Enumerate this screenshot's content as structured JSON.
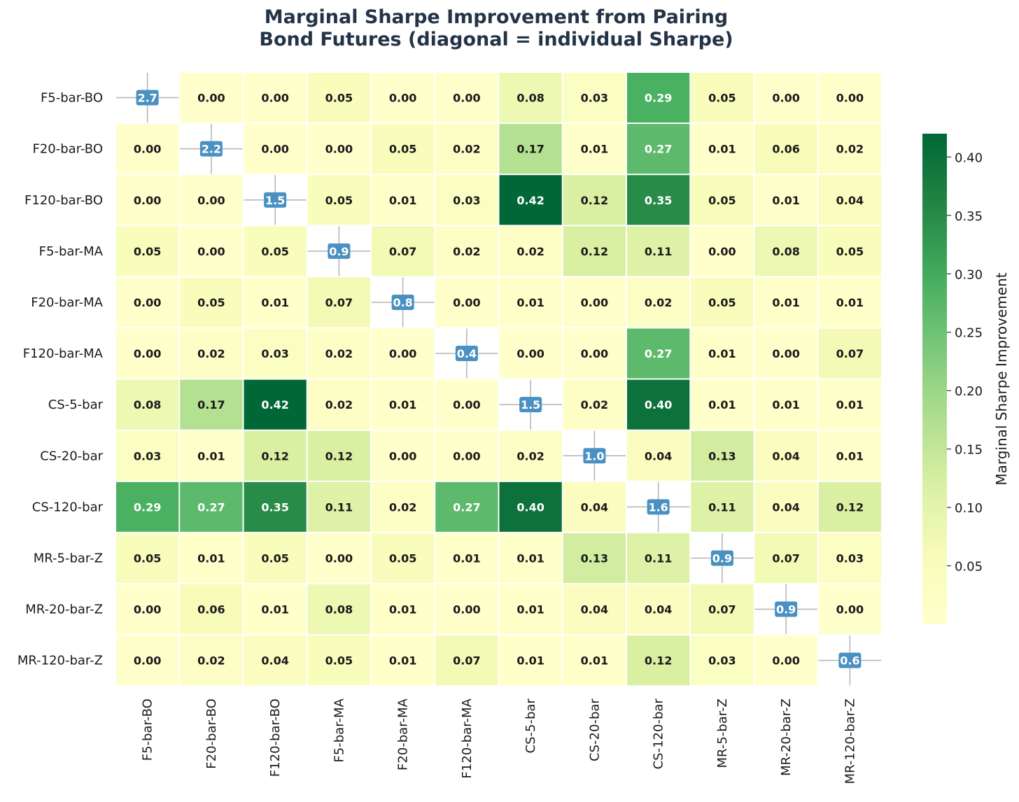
{
  "chart_data": {
    "type": "heatmap",
    "title": [
      "Marginal Sharpe Improvement from Pairing",
      "Bond Futures (diagonal = individual Sharpe)"
    ],
    "row_labels": [
      "F5-bar-BO",
      "F20-bar-BO",
      "F120-bar-BO",
      "F5-bar-MA",
      "F20-bar-MA",
      "F120-bar-MA",
      "CS-5-bar",
      "CS-20-bar",
      "CS-120-bar",
      "MR-5-bar-Z",
      "MR-20-bar-Z",
      "MR-120-bar-Z"
    ],
    "col_labels": [
      "F5-bar-BO",
      "F20-bar-BO",
      "F120-bar-BO",
      "F5-bar-MA",
      "F20-bar-MA",
      "F120-bar-MA",
      "CS-5-bar",
      "CS-20-bar",
      "CS-120-bar",
      "MR-5-bar-Z",
      "MR-20-bar-Z",
      "MR-120-bar-Z"
    ],
    "values": [
      [
        "2.7",
        "0.00",
        "0.00",
        "0.05",
        "0.00",
        "0.00",
        "0.08",
        "0.03",
        "0.29",
        "0.05",
        "0.00",
        "0.00"
      ],
      [
        "0.00",
        "2.2",
        "0.00",
        "0.00",
        "0.05",
        "0.02",
        "0.17",
        "0.01",
        "0.27",
        "0.01",
        "0.06",
        "0.02"
      ],
      [
        "0.00",
        "0.00",
        "1.5",
        "0.05",
        "0.01",
        "0.03",
        "0.42",
        "0.12",
        "0.35",
        "0.05",
        "0.01",
        "0.04"
      ],
      [
        "0.05",
        "0.00",
        "0.05",
        "0.9",
        "0.07",
        "0.02",
        "0.02",
        "0.12",
        "0.11",
        "0.00",
        "0.08",
        "0.05"
      ],
      [
        "0.00",
        "0.05",
        "0.01",
        "0.07",
        "0.8",
        "0.00",
        "0.01",
        "0.00",
        "0.02",
        "0.05",
        "0.01",
        "0.01"
      ],
      [
        "0.00",
        "0.02",
        "0.03",
        "0.02",
        "0.00",
        "0.4",
        "0.00",
        "0.00",
        "0.27",
        "0.01",
        "0.00",
        "0.07"
      ],
      [
        "0.08",
        "0.17",
        "0.42",
        "0.02",
        "0.01",
        "0.00",
        "1.5",
        "0.02",
        "0.40",
        "0.01",
        "0.01",
        "0.01"
      ],
      [
        "0.03",
        "0.01",
        "0.12",
        "0.12",
        "0.00",
        "0.00",
        "0.02",
        "1.0",
        "0.04",
        "0.13",
        "0.04",
        "0.01"
      ],
      [
        "0.29",
        "0.27",
        "0.35",
        "0.11",
        "0.02",
        "0.27",
        "0.40",
        "0.04",
        "1.6",
        "0.11",
        "0.04",
        "0.12"
      ],
      [
        "0.05",
        "0.01",
        "0.05",
        "0.00",
        "0.05",
        "0.01",
        "0.01",
        "0.13",
        "0.11",
        "0.9",
        "0.07",
        "0.03"
      ],
      [
        "0.00",
        "0.06",
        "0.01",
        "0.08",
        "0.01",
        "0.00",
        "0.01",
        "0.04",
        "0.04",
        "0.07",
        "0.9",
        "0.00"
      ],
      [
        "0.00",
        "0.02",
        "0.04",
        "0.05",
        "0.01",
        "0.07",
        "0.01",
        "0.01",
        "0.12",
        "0.03",
        "0.00",
        "0.6"
      ]
    ],
    "colorbar": {
      "label": "Marginal Sharpe Improvement",
      "range": [
        0.0,
        0.42
      ],
      "ticks": [
        "0.05",
        "0.10",
        "0.15",
        "0.20",
        "0.25",
        "0.30",
        "0.35",
        "0.40"
      ],
      "colormap": "YlGn"
    },
    "diagonal_badge_color": "#4a90c2",
    "diagonal_cross_color": "#b3b3b3",
    "title_color": "#243447"
  }
}
